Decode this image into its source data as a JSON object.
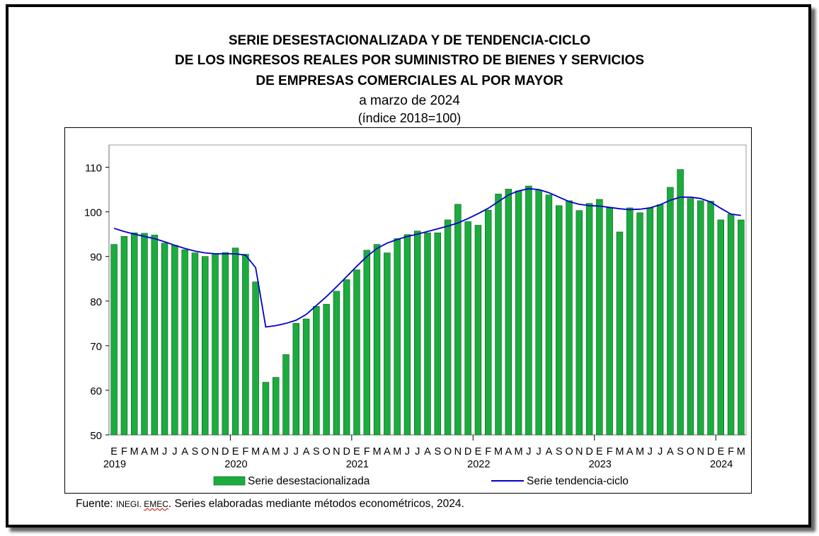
{
  "header": {
    "title_line1": "SERIE DESESTACIONALIZADA  Y DE TENDENCIA-CICLO",
    "title_line2": "DE LOS INGRESOS REALES POR SUMINISTRO DE BIENES Y SERVICIOS",
    "title_line3": "DE EMPRESAS COMERCIALES AL POR MAYOR",
    "subtitle1": "a marzo de 2024",
    "subtitle2": "(índice 2018=100)"
  },
  "footer": {
    "source_prefix": "Fuente: ",
    "source_inegi": "INEGI",
    "source_sep": ". ",
    "source_emec": "EMEC",
    "source_rest": ".  Series elaboradas mediante métodos econométricos, 2024."
  },
  "colors": {
    "bar_fill": "#1bac3e",
    "bar_stroke": "#0b5a1e",
    "line": "#0000cc"
  },
  "chart_data": {
    "type": "bar",
    "title": "SERIE DESESTACIONALIZADA  Y DE TENDENCIA-CICLO DE LOS INGRESOS REALES POR SUMINISTRO DE BIENES Y SERVICIOS DE EMPRESAS COMERCIALES AL POR MAYOR",
    "subtitle": "a marzo de 2024 (índice 2018=100)",
    "ylim": [
      50,
      115
    ],
    "yticks": [
      50,
      60,
      70,
      80,
      90,
      100,
      110
    ],
    "grid": false,
    "legend_position": "bottom",
    "month_labels": [
      "E",
      "F",
      "M",
      "A",
      "M",
      "J",
      "J",
      "A",
      "S",
      "O",
      "N",
      "D",
      "E",
      "F",
      "M",
      "A",
      "M",
      "J",
      "J",
      "A",
      "S",
      "O",
      "N",
      "D",
      "E",
      "F",
      "M",
      "A",
      "M",
      "J",
      "J",
      "A",
      "S",
      "O",
      "N",
      "D",
      "E",
      "F",
      "M",
      "A",
      "M",
      "J",
      "J",
      "A",
      "S",
      "O",
      "N",
      "D",
      "E",
      "F",
      "M",
      "A",
      "M",
      "J",
      "J",
      "A",
      "S",
      "O",
      "N",
      "D",
      "E",
      "F",
      "M"
    ],
    "year_labels": [
      {
        "label": "2019",
        "index": 0
      },
      {
        "label": "2020",
        "index": 12
      },
      {
        "label": "2021",
        "index": 24
      },
      {
        "label": "2022",
        "index": 36
      },
      {
        "label": "2023",
        "index": 48
      },
      {
        "label": "2024",
        "index": 60
      }
    ],
    "series": [
      {
        "name": "Serie desestacionalizada",
        "kind": "bar",
        "values": [
          92.7,
          94.5,
          95.3,
          95.2,
          94.8,
          93.0,
          92.5,
          91.5,
          90.8,
          90.0,
          90.6,
          90.9,
          91.9,
          90.5,
          84.3,
          61.8,
          62.9,
          68.0,
          75.0,
          76.0,
          78.8,
          79.3,
          82.2,
          84.8,
          87.0,
          91.4,
          92.7,
          90.8,
          94.0,
          94.9,
          95.7,
          95.3,
          95.3,
          98.2,
          101.7,
          97.8,
          97.0,
          100.4,
          104.0,
          105.1,
          104.7,
          105.8,
          104.9,
          103.8,
          101.4,
          102.5,
          100.3,
          101.9,
          102.8,
          100.9,
          95.5,
          100.9,
          99.8,
          100.9,
          101.6,
          105.5,
          109.5,
          103.0,
          102.5,
          102.4,
          98.2,
          99.5,
          98.2
        ]
      },
      {
        "name": "Serie tendencia-ciclo",
        "kind": "line",
        "values": [
          96.3,
          95.6,
          95.0,
          94.5,
          94.0,
          93.3,
          92.5,
          91.8,
          91.2,
          90.8,
          90.6,
          90.6,
          90.6,
          90.3,
          87.5,
          74.2,
          74.5,
          75.0,
          75.7,
          77.0,
          79.0,
          81.0,
          83.2,
          85.5,
          87.8,
          90.0,
          91.8,
          93.0,
          93.8,
          94.5,
          95.0,
          95.6,
          96.2,
          96.8,
          97.5,
          98.5,
          99.6,
          100.8,
          102.3,
          103.8,
          104.7,
          105.2,
          105.0,
          104.3,
          103.3,
          102.3,
          101.7,
          101.4,
          101.3,
          101.0,
          100.7,
          100.5,
          100.6,
          100.9,
          101.6,
          102.6,
          103.3,
          103.3,
          103.0,
          102.2,
          100.8,
          99.5,
          99.2
        ]
      }
    ]
  }
}
